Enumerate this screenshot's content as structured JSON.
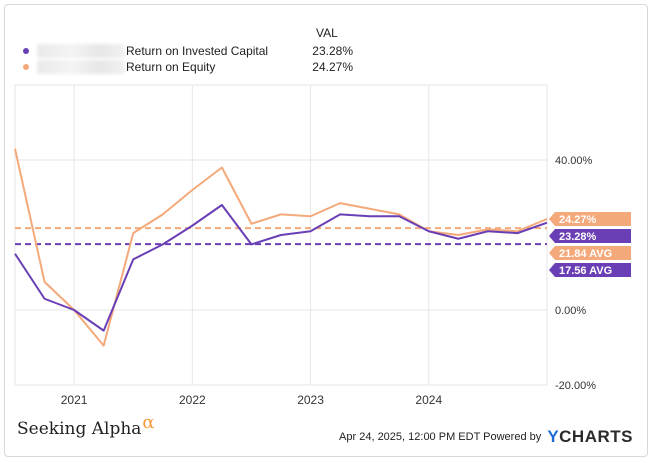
{
  "legend": {
    "header": "VAL",
    "rows": [
      {
        "name": "Return on Invested Capital",
        "value": "23.28%",
        "color": "#6a3fb5"
      },
      {
        "name": "Return on Equity",
        "value": "24.27%",
        "color": "#f4a97a"
      }
    ]
  },
  "footer": {
    "logo_text": "Seeking Alpha",
    "logo_symbol": "α",
    "timestamp": "Apr 24, 2025, 12:00 PM EDT",
    "powered_by": "Powered by",
    "brand_mark": "Y",
    "brand_rest": "CHARTS"
  },
  "chart_data": {
    "type": "line",
    "title": "",
    "xlabel": "",
    "ylabel": "",
    "ylim": [
      -20,
      60
    ],
    "y_ticks": [
      {
        "value": 40,
        "label": "40.00%"
      },
      {
        "value": 0,
        "label": "0.00%"
      },
      {
        "value": -20,
        "label": "-20.00%"
      }
    ],
    "x_ticks": [
      {
        "value": 2021.0,
        "label": "2021"
      },
      {
        "value": 2022.0,
        "label": "2022"
      },
      {
        "value": 2023.0,
        "label": "2023"
      },
      {
        "value": 2024.0,
        "label": "2024"
      }
    ],
    "xlim": [
      2020.5,
      2025.0
    ],
    "grid": true,
    "series": [
      {
        "name": "Return on Invested Capital",
        "color": "#6a3fb5",
        "x": [
          2020.5,
          2020.75,
          2021.0,
          2021.25,
          2021.5,
          2021.75,
          2022.0,
          2022.25,
          2022.5,
          2022.75,
          2023.0,
          2023.25,
          2023.5,
          2023.75,
          2024.0,
          2024.25,
          2024.5,
          2024.75,
          2025.0
        ],
        "values": [
          15.0,
          3.0,
          0.0,
          -5.5,
          13.5,
          17.5,
          22.5,
          28.0,
          17.5,
          20.0,
          21.0,
          25.5,
          25.0,
          25.0,
          21.0,
          19.0,
          21.0,
          20.5,
          23.28
        ],
        "average": 17.56,
        "average_label": "17.56 AVG",
        "end_label": "23.28%"
      },
      {
        "name": "Return on Equity",
        "color": "#f4a97a",
        "x": [
          2020.5,
          2020.75,
          2021.0,
          2021.25,
          2021.5,
          2021.75,
          2022.0,
          2022.25,
          2022.5,
          2022.75,
          2023.0,
          2023.25,
          2023.5,
          2023.75,
          2024.0,
          2024.25,
          2024.5,
          2024.75,
          2025.0
        ],
        "values": [
          43.0,
          7.5,
          0.0,
          -9.5,
          20.5,
          25.5,
          32.0,
          38.0,
          23.0,
          25.5,
          25.0,
          28.5,
          27.0,
          25.5,
          21.0,
          20.0,
          21.5,
          21.0,
          24.27
        ],
        "average": 21.84,
        "average_label": "21.84 AVG",
        "end_label": "24.27%"
      }
    ]
  }
}
